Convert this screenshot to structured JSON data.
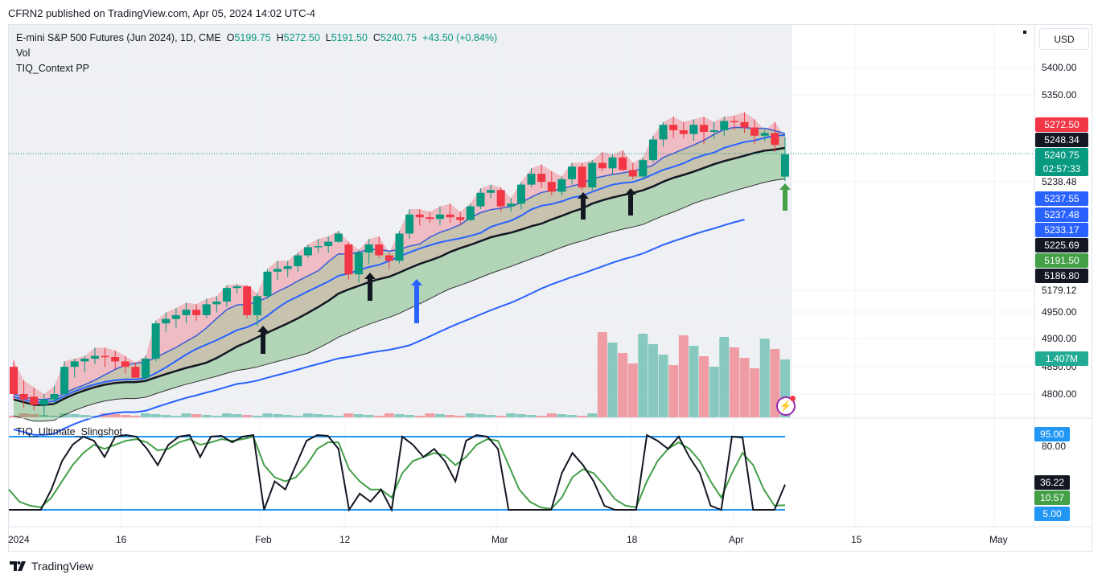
{
  "header": {
    "publisher_line": "CFRN2 published on TradingView.com, Apr 05, 2024 14:02 UTC-4"
  },
  "legend": {
    "symbol": "E-mini S&P 500 Futures (Jun 2024), 1D, CME",
    "open_label": "O",
    "open_value": "5199.75",
    "high_label": "H",
    "high_value": "5272.50",
    "low_label": "L",
    "low_value": "5191.50",
    "close_label": "C",
    "close_value": "5240.75",
    "change": "+43.50 (+0.84%)",
    "vol_label": "Vol",
    "indicator_label": "TIQ_Context PP"
  },
  "currency": "USD",
  "price_axis": {
    "labels": [
      "5400.00",
      "5350.00",
      "5238.48",
      "5179.12",
      "4950.00",
      "4900.00",
      "4850.00",
      "4800.00"
    ],
    "tags": [
      {
        "text": "5272.50",
        "color": "#f23645"
      },
      {
        "text": "5248.34",
        "color": "#131722"
      },
      {
        "text": "5240.75",
        "color": "#089981"
      },
      {
        "text": "02:57:33",
        "color": "#089981"
      },
      {
        "text": "5237.55",
        "color": "#2962ff"
      },
      {
        "text": "5237.48",
        "color": "#2962ff"
      },
      {
        "text": "5233.17",
        "color": "#2962ff"
      },
      {
        "text": "5225.69",
        "color": "#131722"
      },
      {
        "text": "5191.50",
        "color": "#43a047"
      },
      {
        "text": "5186.80",
        "color": "#131722"
      },
      {
        "text": "1.407M",
        "color": "#22ab94"
      }
    ]
  },
  "oscillator": {
    "title": "TIQ_Ultimate_Slingshot",
    "labels": [
      "80.00"
    ],
    "tags": [
      {
        "text": "95.00",
        "color": "#2196f3"
      },
      {
        "text": "36.22",
        "color": "#131722"
      },
      {
        "text": "10.57",
        "color": "#43a047"
      },
      {
        "text": "5.00",
        "color": "#2196f3"
      }
    ]
  },
  "time_axis": [
    "2024",
    "16",
    "Feb",
    "12",
    "Mar",
    "18",
    "Apr",
    "15",
    "May"
  ],
  "footer": {
    "brand": "TradingView"
  },
  "colors": {
    "up": "#089981",
    "down": "#f23645",
    "grid": "#f0f3fa"
  },
  "chart_data": {
    "type": "candlestick",
    "title": "E-mini S&P 500 Futures (Jun 2024), 1D, CME",
    "ohlc_last": {
      "open": 5199.75,
      "high": 5272.5,
      "low": 5191.5,
      "close": 5240.75
    },
    "candles_y_pixels_note": "",
    "candles": [
      {
        "o": 4850,
        "h": 4862,
        "l": 4790,
        "c": 4800
      },
      {
        "o": 4800,
        "h": 4825,
        "l": 4775,
        "c": 4790
      },
      {
        "o": 4795,
        "h": 4812,
        "l": 4770,
        "c": 4780
      },
      {
        "o": 4780,
        "h": 4800,
        "l": 4760,
        "c": 4790
      },
      {
        "o": 4790,
        "h": 4815,
        "l": 4780,
        "c": 4800
      },
      {
        "o": 4800,
        "h": 4860,
        "l": 4795,
        "c": 4850
      },
      {
        "o": 4850,
        "h": 4865,
        "l": 4830,
        "c": 4860
      },
      {
        "o": 4860,
        "h": 4870,
        "l": 4840,
        "c": 4865
      },
      {
        "o": 4865,
        "h": 4885,
        "l": 4855,
        "c": 4870
      },
      {
        "o": 4870,
        "h": 4885,
        "l": 4850,
        "c": 4868
      },
      {
        "o": 4868,
        "h": 4880,
        "l": 4845,
        "c": 4860
      },
      {
        "o": 4860,
        "h": 4870,
        "l": 4838,
        "c": 4850
      },
      {
        "o": 4850,
        "h": 4858,
        "l": 4830,
        "c": 4830
      },
      {
        "o": 4830,
        "h": 4870,
        "l": 4825,
        "c": 4865
      },
      {
        "o": 4865,
        "h": 4935,
        "l": 4860,
        "c": 4930
      },
      {
        "o": 4930,
        "h": 4950,
        "l": 4915,
        "c": 4938
      },
      {
        "o": 4938,
        "h": 4958,
        "l": 4922,
        "c": 4945
      },
      {
        "o": 4945,
        "h": 4968,
        "l": 4930,
        "c": 4955
      },
      {
        "o": 4955,
        "h": 4965,
        "l": 4935,
        "c": 4945
      },
      {
        "o": 4945,
        "h": 4975,
        "l": 4940,
        "c": 4965
      },
      {
        "o": 4965,
        "h": 4980,
        "l": 4950,
        "c": 4970
      },
      {
        "o": 4970,
        "h": 5000,
        "l": 4960,
        "c": 4995
      },
      {
        "o": 4995,
        "h": 5002,
        "l": 4985,
        "c": 4998
      },
      {
        "o": 4998,
        "h": 5000,
        "l": 4940,
        "c": 4945
      },
      {
        "o": 4945,
        "h": 4985,
        "l": 4925,
        "c": 4980
      },
      {
        "o": 4980,
        "h": 5030,
        "l": 4975,
        "c": 5025
      },
      {
        "o": 5025,
        "h": 5045,
        "l": 5010,
        "c": 5030
      },
      {
        "o": 5030,
        "h": 5045,
        "l": 5015,
        "c": 5035
      },
      {
        "o": 5035,
        "h": 5060,
        "l": 5025,
        "c": 5055
      },
      {
        "o": 5055,
        "h": 5075,
        "l": 5050,
        "c": 5070
      },
      {
        "o": 5070,
        "h": 5085,
        "l": 5060,
        "c": 5072
      },
      {
        "o": 5072,
        "h": 5090,
        "l": 5060,
        "c": 5080
      },
      {
        "o": 5080,
        "h": 5100,
        "l": 5078,
        "c": 5095
      },
      {
        "o": 5075,
        "h": 5080,
        "l": 5010,
        "c": 5020
      },
      {
        "o": 5020,
        "h": 5065,
        "l": 5005,
        "c": 5060
      },
      {
        "o": 5060,
        "h": 5085,
        "l": 5040,
        "c": 5075
      },
      {
        "o": 5075,
        "h": 5090,
        "l": 5050,
        "c": 5055
      },
      {
        "o": 5055,
        "h": 5060,
        "l": 5030,
        "c": 5045
      },
      {
        "o": 5045,
        "h": 5100,
        "l": 5040,
        "c": 5095
      },
      {
        "o": 5095,
        "h": 5140,
        "l": 5085,
        "c": 5130
      },
      {
        "o": 5130,
        "h": 5140,
        "l": 5110,
        "c": 5125
      },
      {
        "o": 5125,
        "h": 5135,
        "l": 5115,
        "c": 5122
      },
      {
        "o": 5122,
        "h": 5145,
        "l": 5110,
        "c": 5130
      },
      {
        "o": 5130,
        "h": 5150,
        "l": 5115,
        "c": 5125
      },
      {
        "o": 5125,
        "h": 5135,
        "l": 5110,
        "c": 5120
      },
      {
        "o": 5120,
        "h": 5150,
        "l": 5118,
        "c": 5145
      },
      {
        "o": 5145,
        "h": 5178,
        "l": 5140,
        "c": 5170
      },
      {
        "o": 5170,
        "h": 5185,
        "l": 5160,
        "c": 5175
      },
      {
        "o": 5175,
        "h": 5180,
        "l": 5135,
        "c": 5145
      },
      {
        "o": 5145,
        "h": 5160,
        "l": 5135,
        "c": 5150
      },
      {
        "o": 5150,
        "h": 5190,
        "l": 5140,
        "c": 5185
      },
      {
        "o": 5185,
        "h": 5215,
        "l": 5180,
        "c": 5205
      },
      {
        "o": 5205,
        "h": 5222,
        "l": 5180,
        "c": 5190
      },
      {
        "o": 5190,
        "h": 5210,
        "l": 5165,
        "c": 5172
      },
      {
        "o": 5172,
        "h": 5200,
        "l": 5165,
        "c": 5195
      },
      {
        "o": 5195,
        "h": 5225,
        "l": 5185,
        "c": 5218
      },
      {
        "o": 5218,
        "h": 5225,
        "l": 5175,
        "c": 5180
      },
      {
        "o": 5180,
        "h": 5230,
        "l": 5175,
        "c": 5225
      },
      {
        "o": 5225,
        "h": 5245,
        "l": 5210,
        "c": 5215
      },
      {
        "o": 5215,
        "h": 5240,
        "l": 5205,
        "c": 5235
      },
      {
        "o": 5235,
        "h": 5248,
        "l": 5210,
        "c": 5212
      },
      {
        "o": 5212,
        "h": 5225,
        "l": 5195,
        "c": 5200
      },
      {
        "o": 5200,
        "h": 5235,
        "l": 5195,
        "c": 5230
      },
      {
        "o": 5230,
        "h": 5275,
        "l": 5225,
        "c": 5268
      },
      {
        "o": 5268,
        "h": 5300,
        "l": 5255,
        "c": 5295
      },
      {
        "o": 5295,
        "h": 5310,
        "l": 5270,
        "c": 5285
      },
      {
        "o": 5285,
        "h": 5300,
        "l": 5270,
        "c": 5278
      },
      {
        "o": 5278,
        "h": 5305,
        "l": 5265,
        "c": 5295
      },
      {
        "o": 5295,
        "h": 5310,
        "l": 5260,
        "c": 5282
      },
      {
        "o": 5282,
        "h": 5300,
        "l": 5270,
        "c": 5285
      },
      {
        "o": 5285,
        "h": 5310,
        "l": 5275,
        "c": 5302
      },
      {
        "o": 5302,
        "h": 5312,
        "l": 5285,
        "c": 5300
      },
      {
        "o": 5300,
        "h": 5318,
        "l": 5280,
        "c": 5290
      },
      {
        "o": 5290,
        "h": 5305,
        "l": 5260,
        "c": 5275
      },
      {
        "o": 5275,
        "h": 5285,
        "l": 5265,
        "c": 5280
      },
      {
        "o": 5280,
        "h": 5300,
        "l": 5245,
        "c": 5258
      },
      {
        "o": 5199.75,
        "h": 5272.5,
        "l": 5191.5,
        "c": 5240.75
      }
    ],
    "volume_series_ylabel": "Vol",
    "oscillator_levels": [
      95.0,
      80.0,
      5.0
    ],
    "oscillator_current": {
      "fast": 36.22,
      "slow": 10.57
    }
  }
}
